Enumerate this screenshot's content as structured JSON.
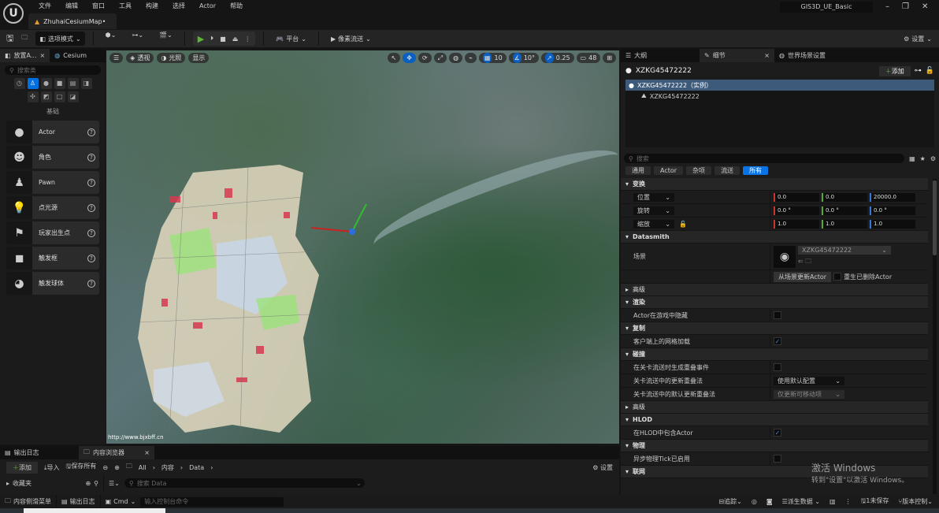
{
  "titlebar": {
    "menu": [
      "文件",
      "编辑",
      "窗口",
      "工具",
      "构建",
      "选择",
      "Actor",
      "帮助"
    ],
    "map_tab": "ZhuhaiCesiumMap•",
    "project": "GIS3D_UE_Basic"
  },
  "toolbar": {
    "mode": "选项模式",
    "platform": "平台",
    "pixel_streaming": "像素流送",
    "settings": "设置"
  },
  "left_panel": {
    "tabs": [
      "放置A...",
      "Cesium"
    ],
    "search_placeholder": "搜索类",
    "category": "基础",
    "items": [
      {
        "label": "Actor",
        "icon": "sphere-icon"
      },
      {
        "label": "角色",
        "icon": "character-icon"
      },
      {
        "label": "Pawn",
        "icon": "pawn-icon"
      },
      {
        "label": "点光源",
        "icon": "point-light-icon"
      },
      {
        "label": "玩家出生点",
        "icon": "player-start-icon"
      },
      {
        "label": "触发框",
        "icon": "trigger-box-icon"
      },
      {
        "label": "触发球体",
        "icon": "trigger-sphere-icon"
      }
    ]
  },
  "viewport": {
    "perspective": "透视",
    "lighting": "光照",
    "show": "显示",
    "grid": "10",
    "angle": "10°",
    "scale": "0.25",
    "camera_speed": "48",
    "watermark": "http://www.bjxbff.cn",
    "accent": "#0a5fc0"
  },
  "right_panel": {
    "tabs": [
      "大纲",
      "细节",
      "世界场景设置"
    ],
    "actor_name": "XZKG45472222",
    "add": "添加",
    "tree": [
      "XZKG45472222（实例）",
      "XZKG45472222"
    ],
    "search_placeholder": "搜索",
    "filters": [
      "通用",
      "Actor",
      "杂项",
      "流送",
      "所有"
    ],
    "transform": {
      "title": "变换",
      "location": {
        "label": "位置",
        "x": "0.0",
        "y": "0.0",
        "z": "20000.0"
      },
      "rotation": {
        "label": "旋转",
        "x": "0.0 °",
        "y": "0.0 °",
        "z": "0.0 °"
      },
      "scale": {
        "label": "缩放",
        "x": "1.0",
        "y": "1.0",
        "z": "1.0"
      }
    },
    "datasmith": {
      "title": "Datasmith",
      "scene_label": "场景",
      "scene_value": "XZKG45472222",
      "update_btn": "从场景更新Actor",
      "respawn": "重生已删除Actor"
    },
    "advanced": "高级",
    "rendering": {
      "title": "渲染",
      "hidden": "Actor在游戏中隐藏"
    },
    "replication": {
      "title": "复制",
      "net_load": "客户端上的网格加载"
    },
    "collision": {
      "title": "碰撞",
      "gen_overlap": "在关卡流送时生成重叠事件",
      "update_method": "关卡流送中的更新重叠法",
      "update_value": "使用默认配置",
      "default_method": "关卡流送中的默认更新重叠法",
      "default_value": "仅更新可移动项"
    },
    "hlod": {
      "title": "HLOD",
      "include": "在HLOD中包含Actor"
    },
    "physics": {
      "title": "物理",
      "async": "异步物理Tick已启用"
    },
    "network": {
      "title": "联网"
    }
  },
  "bottom": {
    "tabs": [
      "输出日志",
      "内容浏览器"
    ],
    "add": "添加",
    "import": "导入",
    "save_all": "保存所有",
    "breadcrumb": [
      "All",
      "内容",
      "Data"
    ],
    "settings": "设置",
    "folders": "收藏夹",
    "search_placeholder": "搜索 Data"
  },
  "statusbar": {
    "content_drawer": "内容侧滑菜单",
    "output_log": "输出日志",
    "cmd": "Cmd",
    "cmd_placeholder": "输入控制台命令",
    "trace": "追踪",
    "derived_data": "派生数据",
    "unsaved": "1未保存",
    "source_control": "版本控制"
  },
  "watermark_windows": {
    "line1": "激活 Windows",
    "line2": "转到\"设置\"以激活 Windows。"
  }
}
